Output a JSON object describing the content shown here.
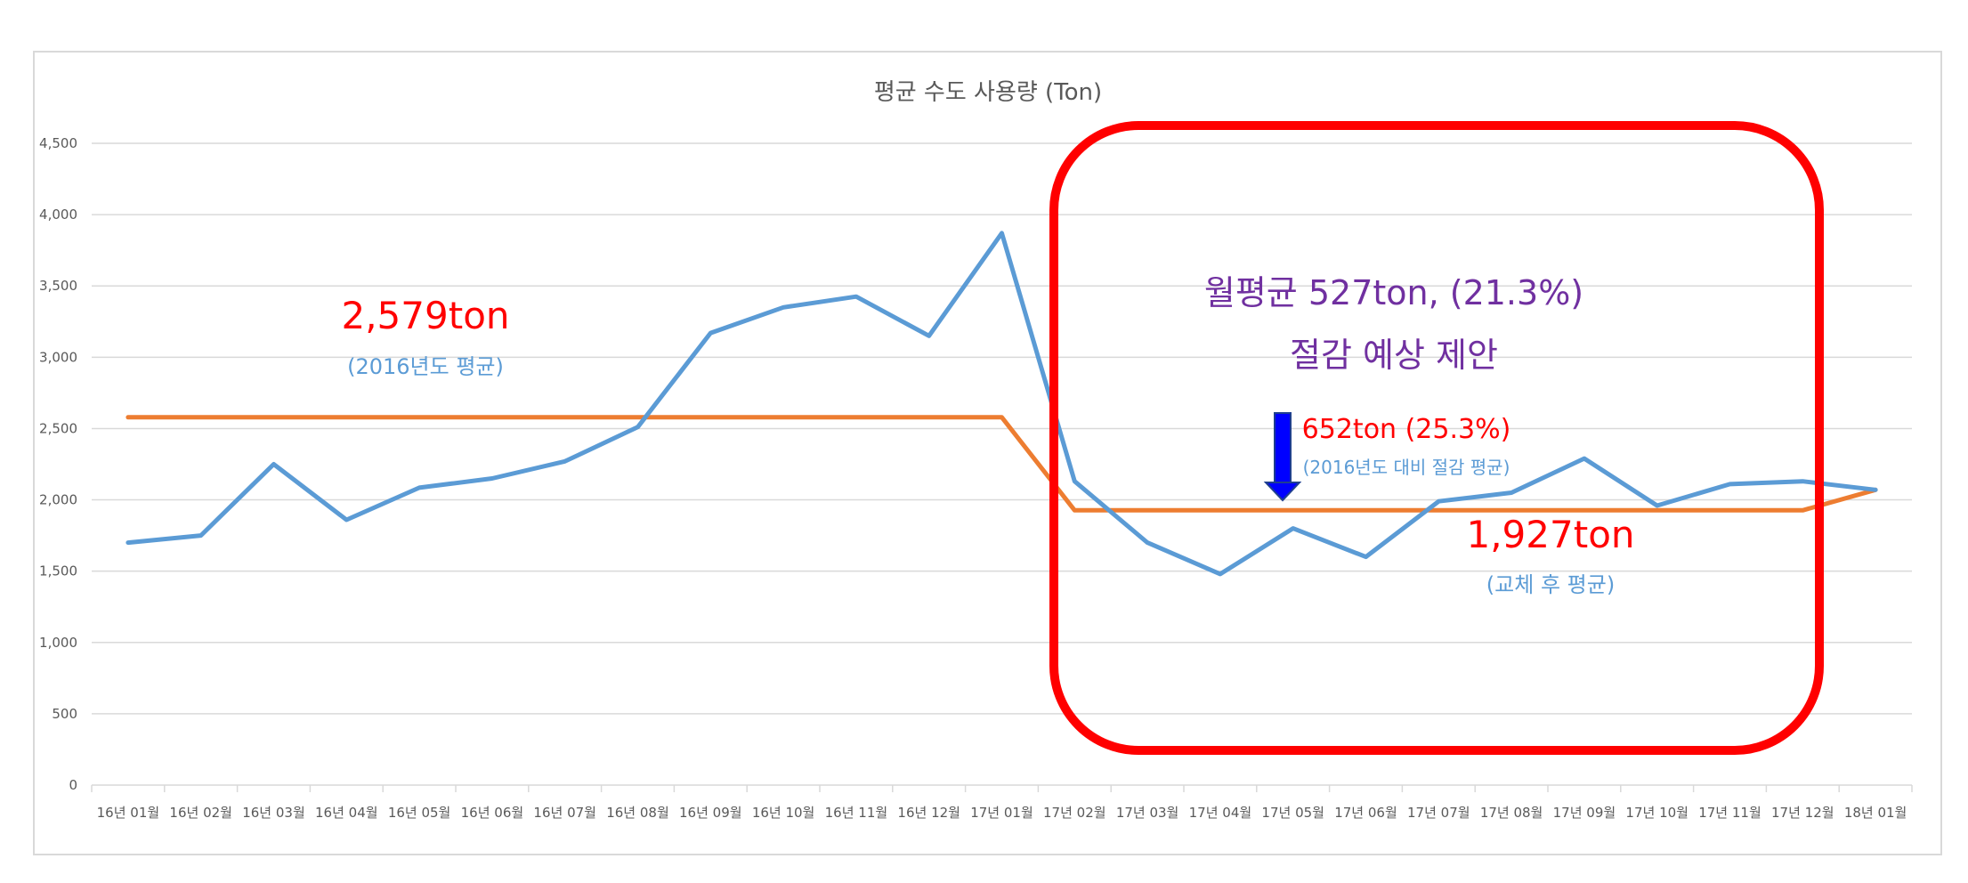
{
  "chart_data": {
    "type": "line",
    "title": "평균 수도 사용량 (Ton)",
    "xlabel": "",
    "ylabel": "",
    "ylim": [
      0,
      4500
    ],
    "yticks": [
      0,
      500,
      1000,
      1500,
      2000,
      2500,
      3000,
      3500,
      4000,
      4500
    ],
    "ytick_labels": [
      "0",
      "500",
      "1,000",
      "1,500",
      "2,000",
      "2,500",
      "3,000",
      "3,500",
      "4,000",
      "4,500"
    ],
    "grid": true,
    "legend": "none",
    "categories": [
      "16년 01월",
      "16년 02월",
      "16년 03월",
      "16년 04월",
      "16년 05월",
      "16년 06월",
      "16년 07월",
      "16년 08월",
      "16년 09월",
      "16년 10월",
      "16년 11월",
      "16년 12월",
      "17년 01월",
      "17년 02월",
      "17년 03월",
      "17년 04월",
      "17년 05월",
      "17년 06월",
      "17년 07월",
      "17년 08월",
      "17년 09월",
      "17년 10월",
      "17년 11월",
      "17년 12월",
      "18년 01월"
    ],
    "series": [
      {
        "color": "#5b9bd5",
        "values": [
          1700,
          1750,
          2250,
          1860,
          2085,
          2150,
          2270,
          2510,
          3170,
          3350,
          3425,
          3150,
          3870,
          2130,
          1700,
          1480,
          1800,
          1600,
          1990,
          2050,
          2290,
          1960,
          2110,
          2130,
          2070
        ]
      },
      {
        "color": "#ed7d31",
        "values": [
          2579,
          2579,
          2579,
          2579,
          2579,
          2579,
          2579,
          2579,
          2579,
          2579,
          2579,
          2579,
          2579,
          1927,
          1927,
          1927,
          1927,
          1927,
          1927,
          1927,
          1927,
          1927,
          1927,
          1927,
          2070
        ]
      }
    ],
    "annotations": {
      "before_value": "2,579ton",
      "before_note": "(2016년도 평균)",
      "saving_line1": "월평균 527ton, (21.3%)",
      "saving_line2": "절감 예상 제안",
      "diff_value": "652ton (25.3%)",
      "diff_note": "(2016년도 대비 절감 평균)",
      "after_value": "1,927ton",
      "after_note": "(교체 후 평균)"
    },
    "colors": {
      "red_text": "#ff0000",
      "blue_note": "#5b9bd5",
      "purple_text": "#7030a0",
      "highlight_box": "#ff0000",
      "arrow": "#0000ff"
    }
  }
}
